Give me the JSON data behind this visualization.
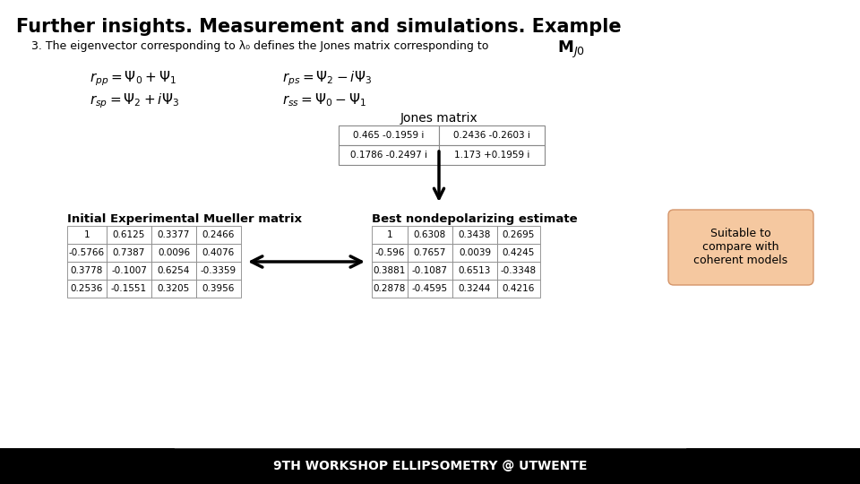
{
  "title": "Further insights. Measurement and simulations. Example",
  "subtitle": "3. The eigenvector corresponding to λ₀ defines the Jones matrix corresponding to",
  "jones_label": "Jones matrix",
  "jones_matrix": [
    [
      "0.465 -0.1959 i",
      "0.2436 -0.2603 i"
    ],
    [
      "0.1786 -0.2497 i",
      "1.173 +0.1959 i"
    ]
  ],
  "mueller_label": "Initial Experimental Mueller matrix",
  "mueller_matrix": [
    [
      "1",
      "0.6125",
      "0.3377",
      "0.2466"
    ],
    [
      "-0.5766",
      "0.7387",
      "0.0096",
      "0.4076"
    ],
    [
      "0.3778",
      "-0.1007",
      "0.6254",
      "-0.3359"
    ],
    [
      "0.2536",
      "-0.1551",
      "0.3205",
      "0.3956"
    ]
  ],
  "nondep_label": "Best nondepolarizing estimate",
  "nondep_matrix": [
    [
      "1",
      "0.6308",
      "0.3438",
      "0.2695"
    ],
    [
      "-0.596",
      "0.7657",
      "0.0039",
      "0.4245"
    ],
    [
      "0.3881",
      "-0.1087",
      "0.6513",
      "-0.3348"
    ],
    [
      "0.2878",
      "-0.4595",
      "0.3244",
      "0.4216"
    ]
  ],
  "suitable_text": "Suitable to\ncompare with\ncoherent models",
  "footer_text": "9TH WORKSHOP ELLIPSOMETRY @ UTWENTE",
  "bg_color": "#ffffff",
  "footer_bg": "#000000",
  "footer_text_color": "#ffffff",
  "title_color": "#000000",
  "suitable_bg": "#f5c8a0"
}
